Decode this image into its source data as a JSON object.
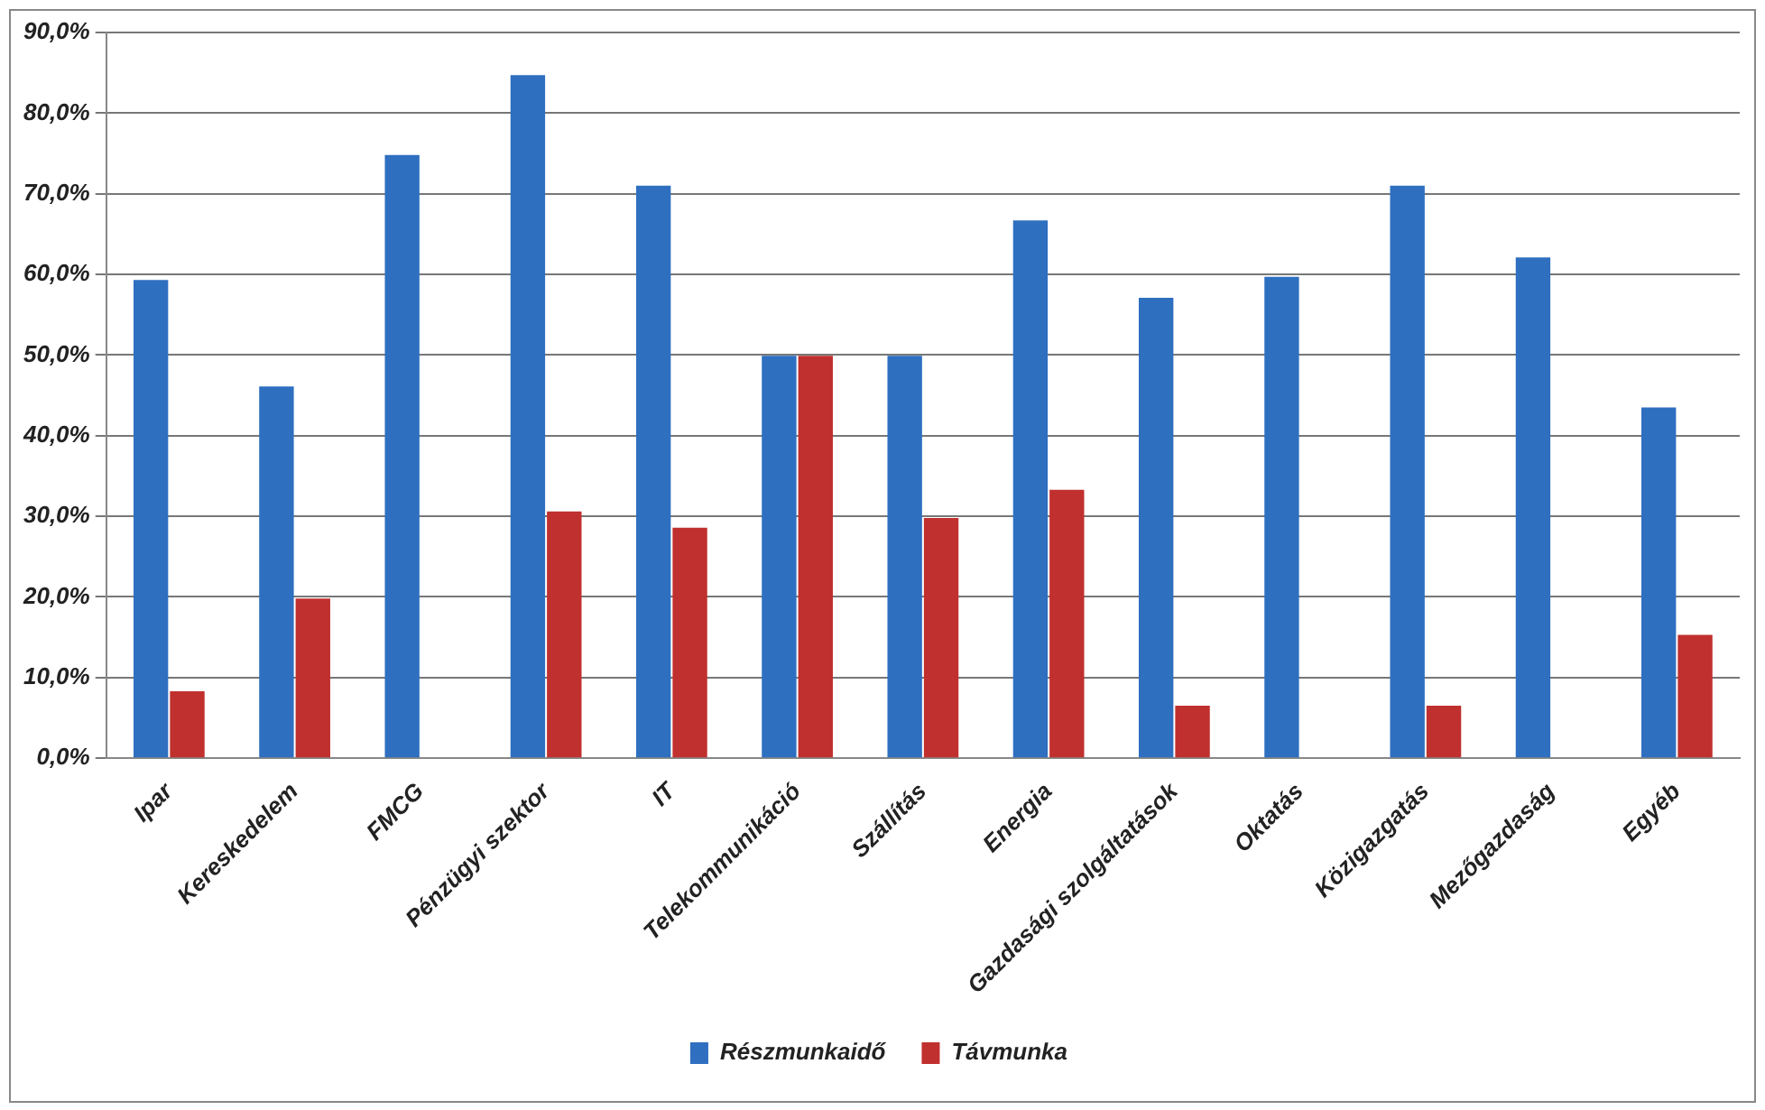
{
  "chart_data": {
    "type": "bar",
    "categories": [
      "Ipar",
      "Kereskedelem",
      "FMCG",
      "Pénzügyi szektor",
      "IT",
      "Telekommunikáció",
      "Szállítás",
      "Energia",
      "Gazdasági szolgáltatások",
      "Oktatás",
      "Közigazgatás",
      "Mezőgazdaság",
      "Egyéb"
    ],
    "series": [
      {
        "name": "Részmunkaidő",
        "color": "#2e6fc0",
        "values": [
          59.3,
          46.1,
          74.8,
          84.7,
          71,
          49.9,
          49.9,
          66.7,
          57.1,
          59.7,
          71,
          62.1,
          43.5
        ]
      },
      {
        "name": "Távmunka",
        "color": "#c0302e",
        "values": [
          8.3,
          19.8,
          null,
          30.6,
          28.6,
          49.9,
          29.8,
          33.3,
          6.5,
          null,
          6.5,
          null,
          15.3
        ]
      }
    ],
    "ylim": [
      0,
      90
    ],
    "yticks": [
      {
        "value": 0,
        "label": "0,0%"
      },
      {
        "value": 10,
        "label": "10,0%"
      },
      {
        "value": 20,
        "label": "20,0%"
      },
      {
        "value": 30,
        "label": "30,0%"
      },
      {
        "value": 40,
        "label": "40,0%"
      },
      {
        "value": 50,
        "label": "50,0%"
      },
      {
        "value": 60,
        "label": "60,0%"
      },
      {
        "value": 70,
        "label": "70,0%"
      },
      {
        "value": 80,
        "label": "80,0%"
      },
      {
        "value": 90,
        "label": "90,0%"
      }
    ],
    "grid": "y",
    "legend": "bottom"
  }
}
